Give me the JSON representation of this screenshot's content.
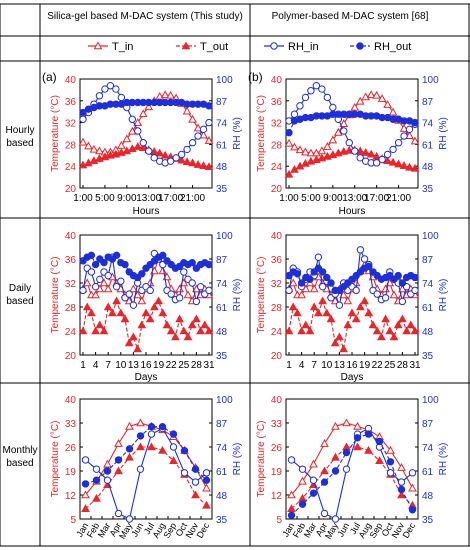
{
  "headers": {
    "left": "Silica-gel based M-DAC system (This study)",
    "right": "Polymer-based M-DAC system [68]"
  },
  "row_labels": {
    "hourly": [
      "Hourly",
      "based"
    ],
    "daily": [
      "Daily",
      "based"
    ],
    "monthly": [
      "Monthly",
      "based"
    ]
  },
  "legend": [
    "T_in",
    "T_out",
    "RH_in",
    "RH_out"
  ],
  "panel_tags": [
    "(a)",
    "(b)"
  ],
  "colors": {
    "temperature": "#e8262b",
    "rh": "#1f2fd6"
  },
  "axes": {
    "temp_label": "Temperature (°C)",
    "rh_label": "RH (%)",
    "hourly": {
      "xlabel": "Hours",
      "xticks": [
        "1:00",
        "5:00",
        "9:00",
        "13:00",
        "17:00",
        "21:00"
      ],
      "temp_ticks": [
        "20",
        "24",
        "28",
        "32",
        "36",
        "40"
      ],
      "rh_ticks": [
        "35",
        "48",
        "61",
        "74",
        "87",
        "100"
      ],
      "temp_range": [
        20,
        40
      ],
      "rh_range": [
        35,
        100
      ]
    },
    "daily": {
      "xlabel": "Days",
      "xticks": [
        "1",
        "4",
        "7",
        "10",
        "13",
        "16",
        "19",
        "22",
        "25",
        "28",
        "31"
      ],
      "temp_ticks": [
        "20",
        "24",
        "28",
        "32",
        "36",
        "40"
      ],
      "rh_ticks": [
        "35",
        "48",
        "61",
        "74",
        "87",
        "100"
      ],
      "temp_range": [
        20,
        40
      ],
      "rh_range": [
        35,
        100
      ]
    },
    "monthly": {
      "xticks": [
        "Jan",
        "Feb",
        "Mar",
        "Apr",
        "May",
        "Jun",
        "Jul",
        "Aug",
        "Sep",
        "Oct",
        "Nov",
        "Dec"
      ],
      "temp_ticks": [
        "5",
        "12",
        "19",
        "26",
        "33",
        "40"
      ],
      "rh_ticks": [
        "35",
        "48",
        "61",
        "74",
        "87",
        "100"
      ],
      "temp_range": [
        5,
        40
      ],
      "rh_range": [
        35,
        100
      ]
    }
  },
  "chart_data": [
    {
      "type": "line",
      "panel": "hourly-left",
      "xlabel": "Hours",
      "x": [
        1,
        2,
        3,
        4,
        5,
        6,
        7,
        8,
        9,
        10,
        11,
        12,
        13,
        14,
        15,
        16,
        17,
        18,
        19,
        20,
        21,
        22,
        23,
        24
      ],
      "series": [
        {
          "name": "T_in",
          "axis": "temp",
          "values": [
            28.4,
            27.7,
            27.1,
            26.8,
            26.6,
            26.6,
            27.0,
            27.8,
            29.0,
            30.4,
            32.0,
            33.6,
            34.9,
            36.0,
            36.8,
            37.1,
            37.0,
            36.5,
            35.5,
            34.1,
            32.6,
            31.0,
            29.7,
            28.7
          ]
        },
        {
          "name": "T_out",
          "axis": "temp",
          "values": [
            24.2,
            24.6,
            25.0,
            25.4,
            25.7,
            26.0,
            26.2,
            26.5,
            26.8,
            27.2,
            27.6,
            27.4,
            27.0,
            26.7,
            26.4,
            26.0,
            25.7,
            25.4,
            25.1,
            24.8,
            24.6,
            24.3,
            24.1,
            23.9
          ]
        },
        {
          "name": "RH_in",
          "axis": "rh",
          "values": [
            76,
            80,
            85,
            90,
            94,
            96,
            94,
            89,
            83,
            76,
            69,
            62,
            57,
            53,
            51,
            50,
            51,
            53,
            55,
            58,
            62,
            66,
            70,
            74
          ]
        },
        {
          "name": "RH_out",
          "axis": "rh",
          "values": [
            80,
            82,
            83,
            84,
            84,
            85,
            85,
            85,
            86,
            86,
            86,
            86,
            86,
            86,
            86,
            86,
            86,
            86,
            86,
            85,
            85,
            85,
            85,
            84
          ]
        }
      ]
    },
    {
      "type": "line",
      "panel": "hourly-right",
      "xlabel": "Hours",
      "x": [
        1,
        2,
        3,
        4,
        5,
        6,
        7,
        8,
        9,
        10,
        11,
        12,
        13,
        14,
        15,
        16,
        17,
        18,
        19,
        20,
        21,
        22,
        23,
        24
      ],
      "series": [
        {
          "name": "T_in",
          "axis": "temp",
          "values": [
            28.2,
            27.5,
            27.0,
            26.6,
            26.4,
            26.4,
            26.8,
            27.6,
            28.8,
            30.2,
            31.8,
            33.4,
            34.8,
            35.9,
            36.7,
            37.1,
            37.0,
            36.4,
            35.3,
            33.9,
            32.4,
            30.9,
            29.6,
            28.6
          ]
        },
        {
          "name": "T_out",
          "axis": "temp",
          "values": [
            22.5,
            23.4,
            24.0,
            24.5,
            24.9,
            25.2,
            25.5,
            25.8,
            26.1,
            26.4,
            26.7,
            26.9,
            27.0,
            26.8,
            26.5,
            26.2,
            25.8,
            25.4,
            25.0,
            24.7,
            24.4,
            24.1,
            23.8,
            23.6
          ]
        },
        {
          "name": "RH_in",
          "axis": "rh",
          "values": [
            75,
            79,
            84,
            89,
            93,
            96,
            94,
            89,
            83,
            76,
            69,
            62,
            57,
            53,
            51,
            50,
            50,
            52,
            55,
            58,
            62,
            66,
            70,
            73
          ]
        },
        {
          "name": "RH_out",
          "axis": "rh",
          "values": [
            68,
            75,
            76,
            77,
            77,
            78,
            78,
            78,
            79,
            79,
            79,
            79,
            79,
            79,
            78,
            78,
            78,
            77,
            77,
            76,
            76,
            75,
            75,
            74
          ]
        }
      ]
    },
    {
      "type": "line",
      "panel": "daily-left",
      "xlabel": "Days",
      "x": [
        1,
        2,
        3,
        4,
        5,
        6,
        7,
        8,
        9,
        10,
        11,
        12,
        13,
        14,
        15,
        16,
        17,
        18,
        19,
        20,
        21,
        22,
        23,
        24,
        25,
        26,
        27,
        28,
        29,
        30,
        31
      ],
      "series": [
        {
          "name": "T_in",
          "axis": "temp",
          "values": [
            31,
            32,
            30,
            30,
            31,
            32,
            31,
            33,
            32,
            31,
            30,
            29,
            31,
            30,
            29,
            31,
            32,
            34,
            36,
            34,
            33,
            31,
            30,
            31,
            32,
            30,
            29,
            31,
            30,
            31,
            30
          ]
        },
        {
          "name": "T_out",
          "axis": "temp",
          "values": [
            24,
            28,
            27,
            24,
            25,
            24,
            28,
            27,
            29,
            27,
            26,
            22,
            23,
            21,
            25,
            27,
            26,
            28,
            29,
            27,
            25,
            24,
            23,
            26,
            24,
            23,
            25,
            26,
            24,
            25,
            24
          ]
        },
        {
          "name": "RH_in",
          "axis": "rh",
          "values": [
            70,
            82,
            80,
            72,
            76,
            80,
            78,
            88,
            72,
            75,
            66,
            68,
            62,
            74,
            70,
            72,
            70,
            90,
            87,
            84,
            70,
            68,
            65,
            66,
            80,
            76,
            74,
            64,
            72,
            68,
            70
          ]
        },
        {
          "name": "RH_out",
          "axis": "rh",
          "values": [
            86,
            88,
            89,
            84,
            87,
            85,
            88,
            87,
            89,
            85,
            84,
            80,
            78,
            77,
            79,
            82,
            84,
            86,
            88,
            89,
            86,
            84,
            82,
            83,
            85,
            84,
            85,
            82,
            84,
            85,
            84
          ]
        }
      ]
    },
    {
      "type": "line",
      "panel": "daily-right",
      "xlabel": "Days",
      "x": [
        1,
        2,
        3,
        4,
        5,
        6,
        7,
        8,
        9,
        10,
        11,
        12,
        13,
        14,
        15,
        16,
        17,
        18,
        19,
        20,
        21,
        22,
        23,
        24,
        25,
        26,
        27,
        28,
        29,
        30,
        31
      ],
      "series": [
        {
          "name": "T_in",
          "axis": "temp",
          "values": [
            31,
            32,
            30,
            30,
            31,
            32,
            31,
            33,
            32,
            31,
            30,
            29,
            31,
            30,
            29,
            31,
            32,
            34,
            35,
            34,
            33,
            31,
            30,
            31,
            32,
            30,
            29,
            31,
            30,
            31,
            30
          ]
        },
        {
          "name": "T_out",
          "axis": "temp",
          "values": [
            24,
            28,
            27,
            24,
            25,
            24,
            28,
            27,
            29,
            27,
            26,
            22,
            23,
            21,
            25,
            27,
            26,
            28,
            29,
            27,
            25,
            24,
            23,
            26,
            24,
            23,
            25,
            26,
            24,
            25,
            24
          ]
        },
        {
          "name": "RH_in",
          "axis": "rh",
          "values": [
            70,
            82,
            80,
            72,
            76,
            80,
            78,
            88,
            72,
            75,
            66,
            68,
            62,
            74,
            70,
            72,
            70,
            92,
            87,
            84,
            70,
            68,
            65,
            66,
            80,
            76,
            74,
            64,
            72,
            68,
            70
          ]
        },
        {
          "name": "RH_out",
          "axis": "rh",
          "values": [
            78,
            80,
            79,
            74,
            77,
            76,
            80,
            82,
            80,
            77,
            74,
            70,
            70,
            72,
            74,
            76,
            78,
            80,
            82,
            83,
            80,
            78,
            76,
            77,
            78,
            76,
            78,
            74,
            77,
            78,
            77
          ]
        }
      ]
    },
    {
      "type": "line",
      "panel": "monthly-left",
      "x": [
        "Jan",
        "Feb",
        "Mar",
        "Apr",
        "May",
        "Jun",
        "Jul",
        "Aug",
        "Sep",
        "Oct",
        "Nov",
        "Dec"
      ],
      "series": [
        {
          "name": "T_in",
          "axis": "temp",
          "values": [
            12,
            16,
            21,
            27,
            32,
            33,
            32,
            31,
            29,
            25,
            20,
            14
          ]
        },
        {
          "name": "T_out",
          "axis": "temp",
          "values": [
            8,
            11,
            15,
            19,
            23,
            26,
            26,
            25,
            22,
            18,
            12,
            9
          ]
        },
        {
          "name": "RH_in",
          "axis": "rh",
          "values": [
            67,
            62,
            56,
            38,
            35,
            62,
            81,
            84,
            74,
            60,
            55,
            60
          ]
        },
        {
          "name": "RH_out",
          "axis": "rh",
          "values": [
            54,
            56,
            61,
            67,
            73,
            80,
            85,
            85,
            81,
            72,
            62,
            56
          ]
        }
      ]
    },
    {
      "type": "line",
      "panel": "monthly-right",
      "x": [
        "Jan",
        "Feb",
        "Mar",
        "Apr",
        "May",
        "Jun",
        "Jul",
        "Aug",
        "Sep",
        "Oct",
        "Nov",
        "Dec"
      ],
      "series": [
        {
          "name": "T_in",
          "axis": "temp",
          "values": [
            12,
            16,
            21,
            27,
            32,
            33,
            32,
            31,
            29,
            25,
            20,
            14
          ]
        },
        {
          "name": "T_out",
          "axis": "temp",
          "values": [
            8,
            11,
            15,
            19,
            23,
            26,
            26,
            25,
            22,
            18,
            12,
            9
          ]
        },
        {
          "name": "RH_in",
          "axis": "rh",
          "values": [
            67,
            62,
            56,
            38,
            35,
            62,
            81,
            84,
            74,
            60,
            55,
            60
          ]
        },
        {
          "name": "RH_out",
          "axis": "rh",
          "values": [
            37,
            43,
            49,
            55,
            61,
            71,
            79,
            81,
            77,
            66,
            51,
            40
          ]
        }
      ]
    }
  ]
}
